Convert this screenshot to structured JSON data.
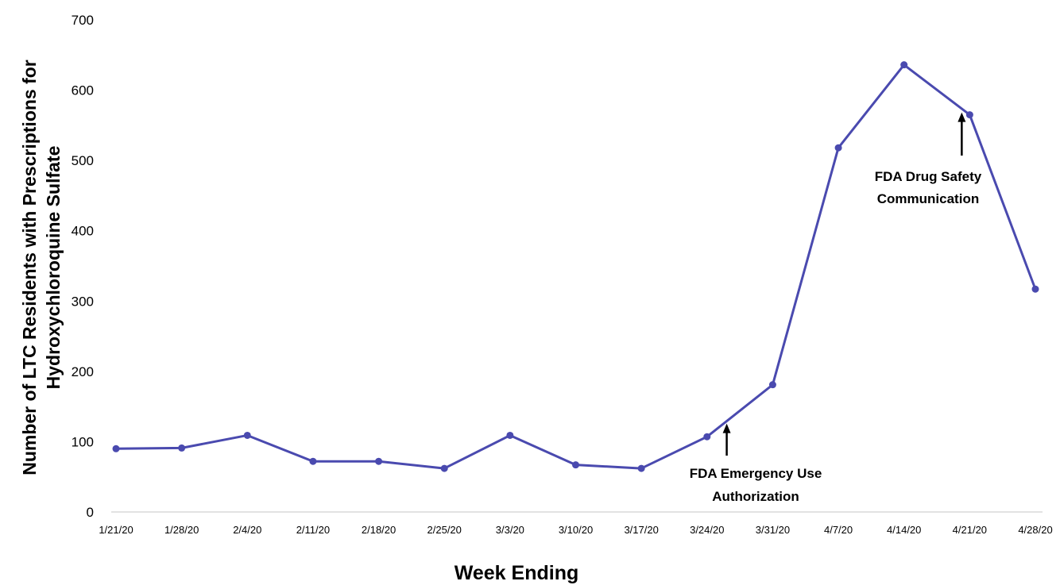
{
  "chart_data": {
    "type": "line",
    "title": "",
    "xlabel": "Week Ending",
    "ylabel_line1": "Number of LTC Residents with Prescriptions for",
    "ylabel_line2": "Hydroxychloroquine Sulfate",
    "ylim": [
      0,
      700
    ],
    "yticks": [
      0,
      100,
      200,
      300,
      400,
      500,
      600,
      700
    ],
    "grid": false,
    "legend": "none",
    "categories": [
      "1/21/20",
      "1/28/20",
      "2/4/20",
      "2/11/20",
      "2/18/20",
      "2/25/20",
      "3/3/20",
      "3/10/20",
      "3/17/20",
      "3/24/20",
      "3/31/20",
      "4/7/20",
      "4/14/20",
      "4/21/20",
      "4/28/20"
    ],
    "series": [
      {
        "values": [
          90,
          91,
          109,
          72,
          72,
          62,
          109,
          67,
          62,
          107,
          181,
          518,
          636,
          565,
          317
        ]
      }
    ],
    "series_color": "#4a4aaf",
    "annotations": [
      {
        "line1": "FDA Emergency Use",
        "line2": "Authorization",
        "week": "3/24/20"
      },
      {
        "line1": "FDA Drug Safety",
        "line2": "Communication",
        "week": "4/21/20"
      }
    ]
  }
}
